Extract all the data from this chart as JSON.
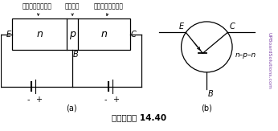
{
  "title": "चित्र 14.40",
  "label_a": "(a)",
  "label_b": "(b)",
  "label_E_left": "E",
  "label_C_left": "C",
  "label_B_left": "B",
  "label_n1": "n",
  "label_p": "p",
  "label_n2": "n",
  "label_utsarjak": "उत्सर्जक",
  "label_aadhar": "आधार",
  "label_sangraahak": "संग्राहक",
  "label_npn": "n–p–n",
  "label_E_right": "E",
  "label_C_right": "C",
  "label_B_right": "B",
  "watermark": "UPBoardSolutions.com",
  "bg_color": "#ffffff",
  "line_color": "#000000"
}
